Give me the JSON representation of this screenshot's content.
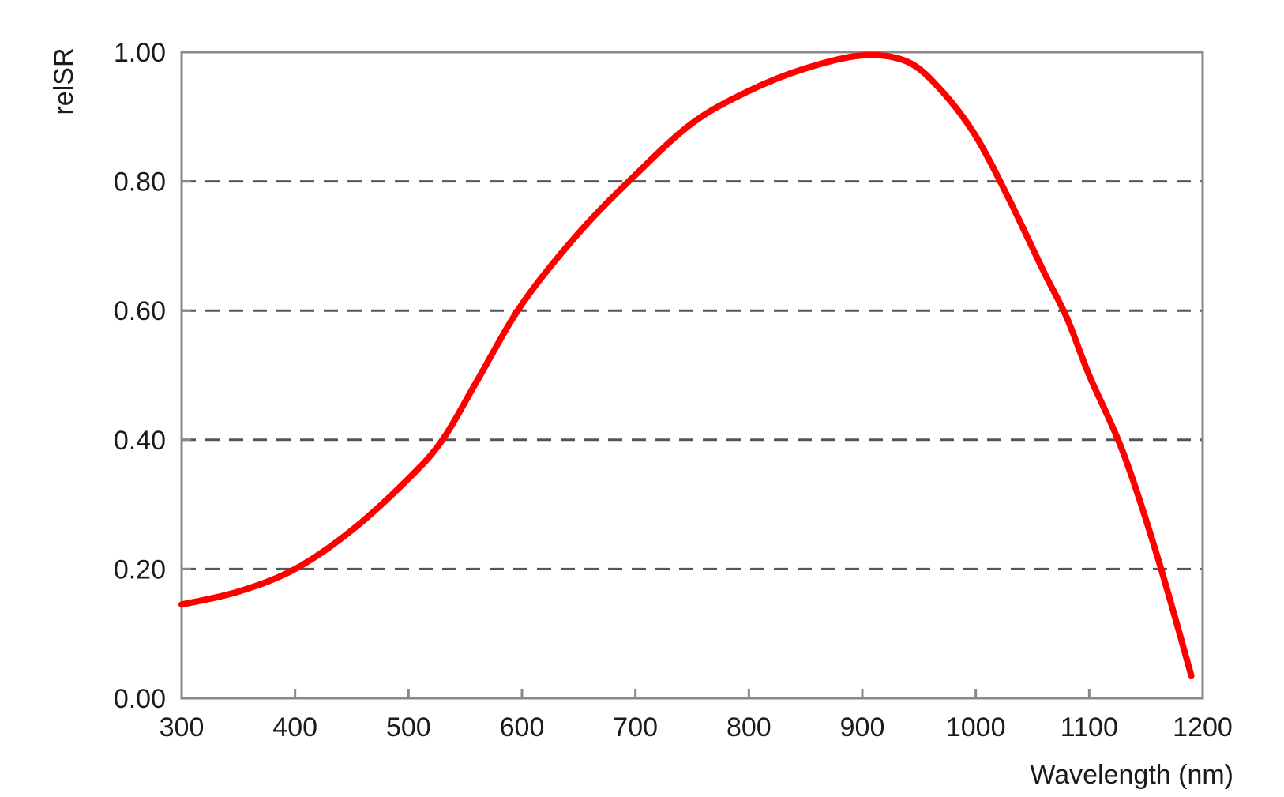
{
  "chart_data": {
    "type": "line",
    "title": "",
    "xlabel": "Wavelength (nm)",
    "ylabel": "relSR",
    "xlim": [
      300,
      1200
    ],
    "ylim": [
      0.0,
      1.0
    ],
    "x_ticks": [
      300,
      400,
      500,
      600,
      700,
      800,
      900,
      1000,
      1100,
      1200
    ],
    "x_tick_labels": [
      "300",
      "400",
      "500",
      "600",
      "700",
      "800",
      "900",
      "1000",
      "1100",
      "1200"
    ],
    "y_ticks": [
      0.0,
      0.2,
      0.4,
      0.6,
      0.8,
      1.0
    ],
    "y_tick_labels": [
      "0.00",
      "0.20",
      "0.40",
      "0.60",
      "0.80",
      "1.00"
    ],
    "grid": "dashed horizontal at y ticks",
    "legend": "none",
    "series": [
      {
        "color": "#ff0000",
        "x": [
          300,
          350,
          400,
          450,
          500,
          530,
          560,
          600,
          650,
          700,
          750,
          800,
          850,
          900,
          940,
          970,
          1000,
          1030,
          1060,
          1080,
          1100,
          1130,
          1160,
          1190
        ],
        "y": [
          0.145,
          0.165,
          0.2,
          0.26,
          0.34,
          0.4,
          0.49,
          0.61,
          0.72,
          0.81,
          0.89,
          0.94,
          0.975,
          0.995,
          0.985,
          0.94,
          0.87,
          0.77,
          0.66,
          0.59,
          0.5,
          0.38,
          0.22,
          0.035
        ]
      }
    ]
  }
}
